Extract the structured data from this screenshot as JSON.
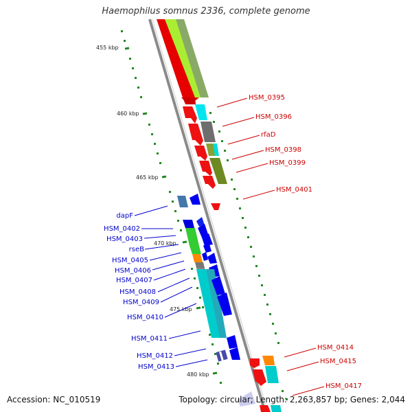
{
  "title": "Haemophilus somnus 2336, complete genome",
  "accession": "Accession: NC_010519",
  "summary": "Topology: circular; Length: 2,263,857 bp; Genes: 2,044",
  "colors": {
    "backbone": "#8a8a8a",
    "tick": "#2a8a2a",
    "plus_label": "#cc0000",
    "minus_label": "#0000cc"
  },
  "ticks": [
    "455 kbp",
    "460 kbp",
    "465 kbp",
    "470 kbp",
    "475 kbp",
    "480 kbp"
  ],
  "plus_genes": [
    "HSM_0395",
    "HSM_0396",
    "rfaD",
    "HSM_0398",
    "HSM_0399",
    "HSM_0401",
    "HSM_0414",
    "HSM_0415",
    "HSM_0417"
  ],
  "minus_genes": [
    "dapF",
    "HSM_0402",
    "HSM_0403",
    "rseB",
    "HSM_0405",
    "HSM_0406",
    "HSM_0407",
    "HSM_0408",
    "HSM_0409",
    "HSM_0410",
    "HSM_0411",
    "HSM_0412",
    "HSM_0413"
  ]
}
